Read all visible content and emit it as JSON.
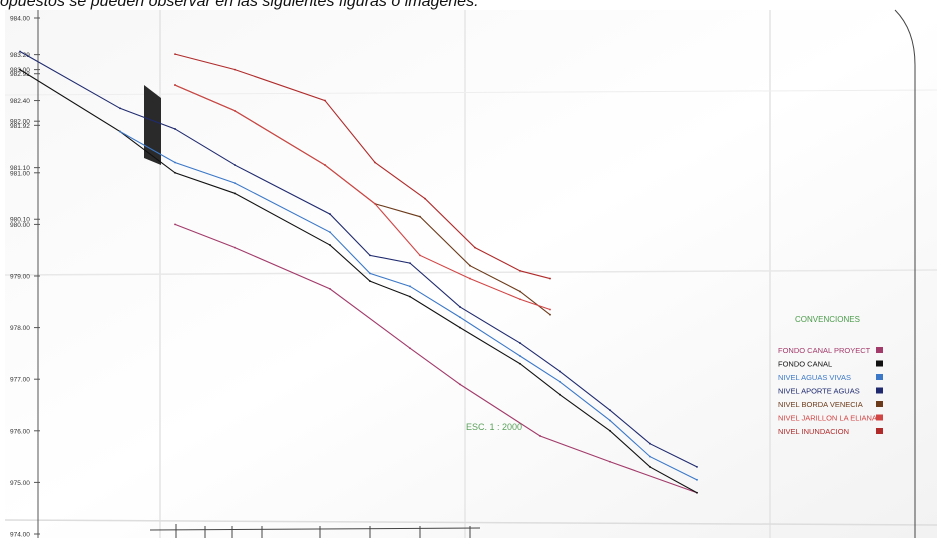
{
  "caption": "opuestos se pueden observar en las siguientes figuras o imágenes.",
  "colors": {
    "fondo_canal_proyect": "#a23a6a",
    "fondo_canal": "#111111",
    "nivel_aguas_vivas": "#3b78c8",
    "nivel_aporte_aguas": "#1f2a6e",
    "nivel_borda_venecia": "#6b3a1a",
    "nivel_jarillon": "#d24545",
    "nivel_inundacion": "#b02a2a"
  },
  "chart_data": {
    "type": "line",
    "title": "",
    "xlabel": "",
    "ylabel": "",
    "ylim": [
      974.0,
      984.0
    ],
    "grid": false,
    "legend_placement": "right",
    "legend_title": "CONVENCIONES",
    "scale_label": "ESC. 1 : 2000",
    "y_ticks": [
      {
        "value": 984.0,
        "label": "984.00"
      },
      {
        "value": 983.29,
        "label": "983.29"
      },
      {
        "value": 983.0,
        "label": "983.00"
      },
      {
        "value": 982.92,
        "label": "982.92"
      },
      {
        "value": 982.4,
        "label": "982.40"
      },
      {
        "value": 982.0,
        "label": "982.00"
      },
      {
        "value": 981.92,
        "label": "981.92"
      },
      {
        "value": 981.1,
        "label": "981.10"
      },
      {
        "value": 981.0,
        "label": "981.00"
      },
      {
        "value": 980.1,
        "label": "980.10"
      },
      {
        "value": 980.0,
        "label": "980.00"
      },
      {
        "value": 979.0,
        "label": "979.00"
      },
      {
        "value": 978.0,
        "label": "978.00"
      },
      {
        "value": 977.0,
        "label": "977.00"
      },
      {
        "value": 976.0,
        "label": "976.00"
      },
      {
        "value": 975.0,
        "label": "975.00"
      },
      {
        "value": 974.0,
        "label": "974.00"
      }
    ],
    "series": [
      {
        "name": "FONDO CANAL PROYECT",
        "color": "#a23a6a",
        "x": [
          175,
          235,
          330,
          410,
          460,
          540,
          610,
          697
        ],
        "y": [
          980.0,
          979.55,
          978.75,
          977.6,
          976.9,
          975.9,
          975.4,
          974.8
        ]
      },
      {
        "name": "FONDO CANAL",
        "color": "#111111",
        "x": [
          20,
          120,
          175,
          235,
          330,
          370,
          410,
          460,
          520,
          560,
          610,
          650,
          697
        ],
        "y": [
          983.0,
          981.8,
          981.0,
          980.6,
          979.6,
          978.9,
          978.6,
          978.0,
          977.3,
          976.7,
          976.0,
          975.3,
          974.8
        ]
      },
      {
        "name": "NIVEL AGUAS VIVAS",
        "color": "#3b78c8",
        "x": [
          120,
          175,
          235,
          330,
          370,
          410,
          460,
          520,
          560,
          610,
          650,
          697
        ],
        "y": [
          981.8,
          981.2,
          980.8,
          979.85,
          979.05,
          978.8,
          978.2,
          977.45,
          976.95,
          976.2,
          975.5,
          975.05
        ]
      },
      {
        "name": "NIVEL APORTE AGUAS",
        "color": "#1f2a6e",
        "x": [
          20,
          120,
          175,
          235,
          330,
          370,
          410,
          460,
          520,
          560,
          610,
          650,
          697
        ],
        "y": [
          983.35,
          982.25,
          981.85,
          981.15,
          980.2,
          979.4,
          979.25,
          978.4,
          977.7,
          977.15,
          976.4,
          975.75,
          975.3
        ]
      },
      {
        "name": "NIVEL BORDA VENECIA",
        "color": "#6b3a1a",
        "x": [
          175,
          235,
          325,
          375,
          420,
          470,
          520,
          550
        ],
        "y": [
          982.7,
          982.2,
          981.15,
          980.4,
          980.15,
          979.2,
          978.7,
          978.25
        ]
      },
      {
        "name": "NIVEL JARILLON LA ELIANA",
        "color": "#d24545",
        "x": [
          175,
          235,
          325,
          375,
          420,
          470,
          520,
          550
        ],
        "y": [
          982.7,
          982.2,
          981.15,
          980.4,
          979.4,
          978.95,
          978.55,
          978.35
        ]
      },
      {
        "name": "NIVEL INUNDACION",
        "color": "#b02a2a",
        "x": [
          175,
          235,
          325,
          375,
          425,
          475,
          520,
          550
        ],
        "y": [
          983.3,
          983.0,
          982.4,
          981.2,
          980.5,
          979.55,
          979.1,
          978.95
        ]
      }
    ]
  }
}
